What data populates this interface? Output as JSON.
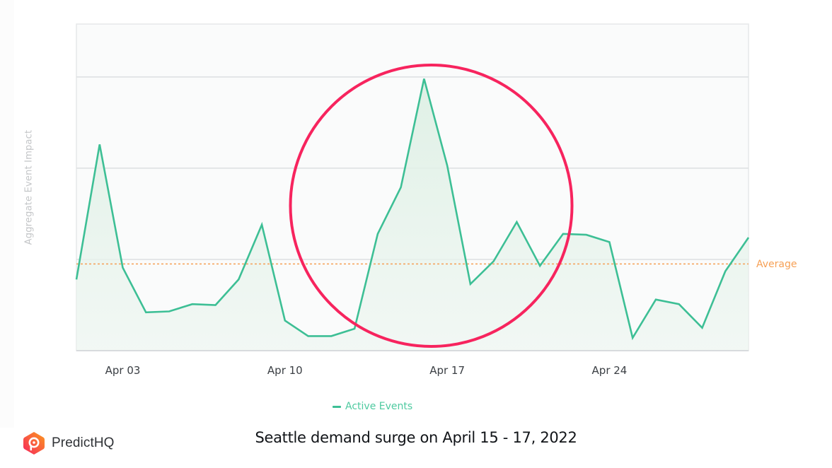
{
  "chart": {
    "y_axis_label": "Aggregate Event Impact",
    "average_label": "Average",
    "legend": [
      {
        "label": "Active Events",
        "color": "#3dbf95"
      }
    ],
    "x_ticks": [
      {
        "label": "Apr 03",
        "index": 2
      },
      {
        "label": "Apr 10",
        "index": 9
      },
      {
        "label": "Apr 17",
        "index": 16
      },
      {
        "label": "Apr 24",
        "index": 23
      }
    ],
    "highlight": {
      "description": "circle around Apr 14 - Apr 19 surge",
      "color": "#f7245e"
    }
  },
  "footer": {
    "brand": "PredictHQ",
    "caption": "Seattle demand surge on April 15 - 17, 2022"
  },
  "colors": {
    "line": "#3dbf95",
    "fill": "#e6f2ea",
    "average": "#f6a055",
    "highlight": "#f7245e",
    "grid": "#dcdfe1",
    "plot_bg": "#fafbfb"
  },
  "chart_data": {
    "type": "area",
    "title": "",
    "xlabel": "",
    "ylabel": "Aggregate Event Impact",
    "x": [
      "Apr 01",
      "Apr 02",
      "Apr 03",
      "Apr 04",
      "Apr 05",
      "Apr 06",
      "Apr 07",
      "Apr 08",
      "Apr 09",
      "Apr 10",
      "Apr 11",
      "Apr 12",
      "Apr 13",
      "Apr 14",
      "Apr 15",
      "Apr 16",
      "Apr 17",
      "Apr 18",
      "Apr 19",
      "Apr 20",
      "Apr 21",
      "Apr 22",
      "Apr 23",
      "Apr 24",
      "Apr 25",
      "Apr 26",
      "Apr 27",
      "Apr 28",
      "Apr 29",
      "Apr 30"
    ],
    "series": [
      {
        "name": "Active Events",
        "values": [
          0.78,
          2.26,
          0.91,
          0.42,
          0.43,
          0.51,
          0.5,
          0.78,
          1.38,
          0.33,
          0.16,
          0.16,
          0.24,
          1.28,
          1.79,
          2.98,
          2.03,
          0.73,
          0.98,
          1.41,
          0.93,
          1.28,
          1.27,
          1.19,
          0.14,
          0.56,
          0.51,
          0.25,
          0.87,
          1.24
        ]
      }
    ],
    "average": 0.95,
    "ylim": [
      0,
      3.58
    ],
    "y_gridlines": [
      1,
      2,
      3
    ],
    "y_tick_labels_shown": false,
    "x_tick_labels": [
      "Apr 03",
      "Apr 10",
      "Apr 17",
      "Apr 24"
    ],
    "grid": true,
    "legend_position": "bottom",
    "annotations": [
      {
        "type": "circle",
        "label": "surge highlight",
        "around": [
          "Apr 14",
          "Apr 19"
        ]
      },
      {
        "type": "hline",
        "label": "Average",
        "value": 0.95
      }
    ]
  }
}
